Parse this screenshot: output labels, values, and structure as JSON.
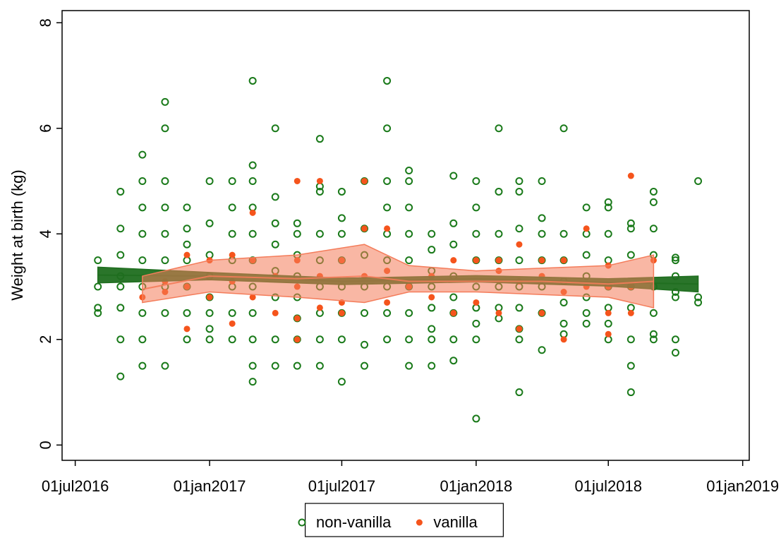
{
  "chart_data": {
    "type": "scatter",
    "ylabel": "Weight at birth (kg)",
    "xlim": [
      "2016-06-13",
      "2019-01-10"
    ],
    "xticks": [
      {
        "value": "2016-07-01",
        "label": "01jul2016"
      },
      {
        "value": "2017-01-01",
        "label": "01jan2017"
      },
      {
        "value": "2017-07-01",
        "label": "01jul2017"
      },
      {
        "value": "2018-01-01",
        "label": "01jan2018"
      },
      {
        "value": "2018-07-01",
        "label": "01jul2018"
      },
      {
        "value": "2019-01-01",
        "label": "01jan2019"
      }
    ],
    "ylim": [
      -0.29,
      8.23
    ],
    "yticks": [
      0,
      2,
      4,
      6,
      8
    ],
    "legend": "bottom",
    "series": [
      {
        "name": "non-vanilla",
        "color": "#1a7a1a",
        "marker": "hollow",
        "x": [
          "2016-08-01",
          "2016-08-01",
          "2016-08-01",
          "2016-08-01",
          "2016-09-01",
          "2016-09-01",
          "2016-09-01",
          "2016-09-01",
          "2016-09-01",
          "2016-09-01",
          "2016-09-01",
          "2016-09-01",
          "2016-10-01",
          "2016-10-01",
          "2016-10-01",
          "2016-10-01",
          "2016-10-01",
          "2016-10-01",
          "2016-10-01",
          "2016-10-01",
          "2016-10-01",
          "2016-11-01",
          "2016-11-01",
          "2016-11-01",
          "2016-11-01",
          "2016-11-01",
          "2016-11-01",
          "2016-11-01",
          "2016-11-01",
          "2016-11-01",
          "2016-12-01",
          "2016-12-01",
          "2016-12-01",
          "2016-12-01",
          "2016-12-01",
          "2016-12-01",
          "2016-12-01",
          "2017-01-01",
          "2017-01-01",
          "2017-01-01",
          "2017-01-01",
          "2017-01-01",
          "2017-01-01",
          "2017-01-01",
          "2017-01-01",
          "2017-02-01",
          "2017-02-01",
          "2017-02-01",
          "2017-02-01",
          "2017-02-01",
          "2017-02-01",
          "2017-02-01",
          "2017-03-01",
          "2017-03-01",
          "2017-03-01",
          "2017-03-01",
          "2017-03-01",
          "2017-03-01",
          "2017-03-01",
          "2017-03-01",
          "2017-03-01",
          "2017-03-01",
          "2017-03-01",
          "2017-04-01",
          "2017-04-01",
          "2017-04-01",
          "2017-04-01",
          "2017-04-01",
          "2017-04-01",
          "2017-04-01",
          "2017-04-01",
          "2017-05-01",
          "2017-05-01",
          "2017-05-01",
          "2017-05-01",
          "2017-05-01",
          "2017-05-01",
          "2017-05-01",
          "2017-05-01",
          "2017-06-01",
          "2017-06-01",
          "2017-06-01",
          "2017-06-01",
          "2017-06-01",
          "2017-06-01",
          "2017-06-01",
          "2017-06-01",
          "2017-06-01",
          "2017-07-01",
          "2017-07-01",
          "2017-07-01",
          "2017-07-01",
          "2017-07-01",
          "2017-07-01",
          "2017-07-01",
          "2017-07-01",
          "2017-08-01",
          "2017-08-01",
          "2017-08-01",
          "2017-08-01",
          "2017-08-01",
          "2017-08-01",
          "2017-08-01",
          "2017-09-01",
          "2017-09-01",
          "2017-09-01",
          "2017-09-01",
          "2017-09-01",
          "2017-09-01",
          "2017-09-01",
          "2017-09-01",
          "2017-09-01",
          "2017-10-01",
          "2017-10-01",
          "2017-10-01",
          "2017-10-01",
          "2017-10-01",
          "2017-10-01",
          "2017-10-01",
          "2017-10-01",
          "2017-10-01",
          "2017-11-01",
          "2017-11-01",
          "2017-11-01",
          "2017-11-01",
          "2017-11-01",
          "2017-11-01",
          "2017-11-01",
          "2017-11-01",
          "2017-12-01",
          "2017-12-01",
          "2017-12-01",
          "2017-12-01",
          "2017-12-01",
          "2017-12-01",
          "2017-12-01",
          "2017-12-01",
          "2018-01-01",
          "2018-01-01",
          "2018-01-01",
          "2018-01-01",
          "2018-01-01",
          "2018-01-01",
          "2018-01-01",
          "2018-01-01",
          "2018-01-01",
          "2018-02-01",
          "2018-02-01",
          "2018-02-01",
          "2018-02-01",
          "2018-02-01",
          "2018-02-01",
          "2018-02-01",
          "2018-03-01",
          "2018-03-01",
          "2018-03-01",
          "2018-03-01",
          "2018-03-01",
          "2018-03-01",
          "2018-03-01",
          "2018-03-01",
          "2018-03-01",
          "2018-04-01",
          "2018-04-01",
          "2018-04-01",
          "2018-04-01",
          "2018-04-01",
          "2018-04-01",
          "2018-04-01",
          "2018-05-01",
          "2018-05-01",
          "2018-05-01",
          "2018-05-01",
          "2018-05-01",
          "2018-05-01",
          "2018-05-01",
          "2018-06-01",
          "2018-06-01",
          "2018-06-01",
          "2018-06-01",
          "2018-06-01",
          "2018-06-01",
          "2018-06-01",
          "2018-07-01",
          "2018-07-01",
          "2018-07-01",
          "2018-07-01",
          "2018-07-01",
          "2018-07-01",
          "2018-07-01",
          "2018-07-01",
          "2018-08-01",
          "2018-08-01",
          "2018-08-01",
          "2018-08-01",
          "2018-08-01",
          "2018-08-01",
          "2018-08-01",
          "2018-08-01",
          "2018-09-01",
          "2018-09-01",
          "2018-09-01",
          "2018-09-01",
          "2018-09-01",
          "2018-09-01",
          "2018-09-01",
          "2018-09-01",
          "2018-10-01",
          "2018-10-01",
          "2018-10-01",
          "2018-10-01",
          "2018-10-01",
          "2018-10-01",
          "2018-10-01",
          "2018-11-01",
          "2018-11-01",
          "2018-11-01"
        ],
        "values": [
          3.5,
          3.0,
          2.6,
          2.5,
          4.8,
          4.1,
          3.6,
          3.2,
          3.0,
          2.6,
          2.0,
          1.3,
          5.5,
          5.0,
          4.5,
          4.0,
          3.5,
          3.0,
          2.5,
          2.0,
          1.5,
          6.5,
          6.0,
          5.0,
          4.5,
          4.0,
          3.5,
          3.0,
          2.5,
          1.5,
          4.5,
          4.1,
          3.8,
          3.5,
          3.0,
          2.5,
          2.0,
          5.0,
          4.2,
          3.6,
          3.2,
          2.8,
          2.5,
          2.2,
          2.0,
          5.0,
          4.5,
          4.0,
          3.5,
          3.0,
          2.5,
          2.0,
          6.9,
          5.3,
          5.0,
          4.5,
          4.0,
          3.5,
          3.0,
          2.5,
          2.0,
          1.5,
          1.2,
          6.0,
          4.7,
          4.2,
          3.8,
          3.3,
          2.8,
          2.0,
          1.5,
          4.2,
          4.0,
          3.6,
          3.2,
          2.8,
          2.4,
          2.0,
          1.5,
          5.8,
          4.9,
          4.8,
          4.0,
          3.5,
          3.0,
          2.5,
          2.0,
          1.5,
          4.8,
          4.3,
          4.0,
          3.5,
          3.0,
          2.5,
          2.0,
          1.2,
          5.0,
          4.1,
          3.6,
          3.0,
          2.5,
          1.9,
          1.5,
          6.9,
          6.0,
          5.0,
          4.5,
          4.0,
          3.5,
          3.0,
          2.5,
          2.0,
          5.2,
          5.0,
          4.5,
          4.0,
          3.5,
          3.0,
          2.5,
          2.0,
          1.5,
          4.0,
          3.7,
          3.3,
          3.0,
          2.6,
          2.2,
          2.0,
          1.5,
          5.1,
          4.2,
          3.8,
          3.2,
          2.8,
          2.5,
          2.0,
          1.6,
          5.0,
          4.5,
          4.0,
          3.5,
          3.0,
          2.6,
          2.3,
          2.0,
          0.5,
          6.0,
          4.8,
          4.0,
          3.5,
          3.0,
          2.6,
          2.4,
          5.0,
          4.8,
          4.1,
          3.5,
          3.0,
          2.6,
          2.2,
          2.0,
          1.0,
          5.0,
          4.3,
          4.0,
          3.5,
          3.0,
          2.5,
          1.8,
          6.0,
          4.0,
          3.5,
          3.1,
          2.7,
          2.3,
          2.1,
          4.5,
          4.0,
          3.6,
          3.2,
          2.8,
          2.5,
          2.3,
          4.6,
          4.5,
          4.0,
          3.5,
          3.0,
          2.6,
          2.3,
          2.0,
          4.2,
          4.1,
          3.6,
          3.0,
          2.6,
          2.0,
          1.5,
          1.0,
          4.8,
          4.6,
          4.1,
          3.6,
          3.0,
          2.5,
          2.1,
          2.0,
          3.55,
          3.5,
          3.2,
          2.9,
          2.8,
          2.0,
          1.75,
          5.0,
          2.8,
          2.7
        ]
      },
      {
        "name": "vanilla",
        "color": "#f5541c",
        "marker": "filled",
        "x": [
          "2016-10-01",
          "2016-11-01",
          "2016-11-01",
          "2016-12-01",
          "2016-12-01",
          "2016-12-01",
          "2017-01-01",
          "2017-01-01",
          "2017-02-01",
          "2017-02-01",
          "2017-02-01",
          "2017-03-01",
          "2017-03-01",
          "2017-03-01",
          "2017-04-01",
          "2017-04-01",
          "2017-05-01",
          "2017-05-01",
          "2017-05-01",
          "2017-05-01",
          "2017-05-01",
          "2017-06-01",
          "2017-06-01",
          "2017-06-01",
          "2017-07-01",
          "2017-07-01",
          "2017-07-01",
          "2017-08-01",
          "2017-08-01",
          "2017-08-01",
          "2017-09-01",
          "2017-09-01",
          "2017-09-01",
          "2017-10-01",
          "2017-11-01",
          "2017-11-01",
          "2017-12-01",
          "2017-12-01",
          "2018-01-01",
          "2018-01-01",
          "2018-02-01",
          "2018-02-01",
          "2018-02-01",
          "2018-03-01",
          "2018-03-01",
          "2018-03-01",
          "2018-04-01",
          "2018-04-01",
          "2018-04-01",
          "2018-05-01",
          "2018-05-01",
          "2018-05-01",
          "2018-06-01",
          "2018-06-01",
          "2018-07-01",
          "2018-07-01",
          "2018-07-01",
          "2018-07-01",
          "2018-08-01",
          "2018-08-01",
          "2018-08-01",
          "2018-09-01"
        ],
        "values": [
          2.8,
          3.1,
          2.9,
          3.6,
          3.0,
          2.2,
          3.5,
          2.8,
          3.6,
          3.1,
          2.3,
          4.4,
          3.5,
          2.8,
          3.2,
          2.5,
          5.0,
          3.5,
          3.0,
          2.4,
          2.0,
          5.0,
          3.2,
          2.6,
          3.5,
          2.7,
          2.5,
          5.0,
          4.1,
          3.2,
          4.1,
          3.3,
          2.7,
          3.0,
          3.2,
          2.8,
          3.5,
          2.5,
          3.5,
          2.7,
          3.5,
          3.3,
          2.5,
          3.8,
          3.1,
          2.2,
          3.5,
          3.2,
          2.5,
          3.5,
          2.9,
          2.0,
          4.1,
          3.0,
          3.4,
          3.0,
          2.5,
          2.1,
          5.1,
          3.0,
          2.5,
          3.5
        ]
      }
    ],
    "fits": [
      {
        "color": "#1f6e1f",
        "x": [
          "2016-08-01",
          "2017-01-01",
          "2017-07-01",
          "2018-01-01",
          "2018-07-01",
          "2018-11-01"
        ],
        "values": [
          3.22,
          3.2,
          3.1,
          3.15,
          3.08,
          3.05
        ],
        "lower": [
          3.07,
          3.13,
          3.04,
          3.09,
          3.01,
          2.9
        ],
        "upper": [
          3.37,
          3.27,
          3.16,
          3.21,
          3.15,
          3.2
        ]
      },
      {
        "color": "#f47c5a",
        "x": [
          "2016-10-01",
          "2017-01-01",
          "2017-05-01",
          "2017-08-01",
          "2017-10-01",
          "2018-01-01",
          "2018-04-01",
          "2018-07-01",
          "2018-09-01"
        ],
        "values": [
          2.95,
          3.2,
          3.15,
          3.2,
          3.1,
          3.1,
          3.1,
          3.05,
          3.1
        ],
        "lower": [
          2.7,
          2.9,
          2.8,
          2.7,
          2.9,
          2.9,
          2.85,
          2.8,
          2.6
        ],
        "upper": [
          3.2,
          3.5,
          3.6,
          3.8,
          3.4,
          3.3,
          3.35,
          3.4,
          3.6
        ]
      }
    ]
  }
}
